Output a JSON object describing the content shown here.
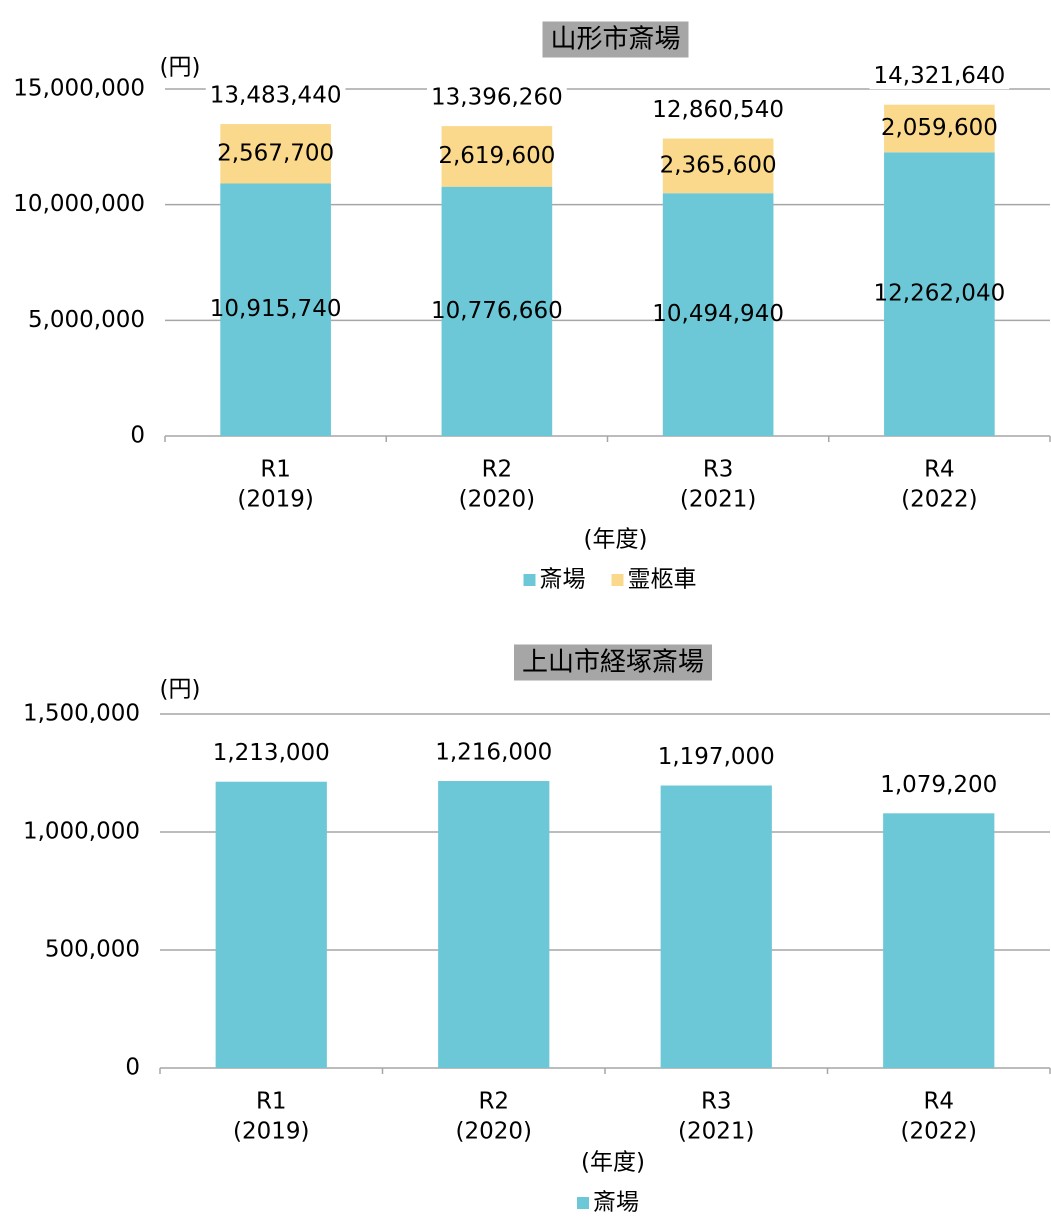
{
  "chart_data": [
    {
      "type": "stacked_bar",
      "title": "山形市斎場",
      "y_unit": "(円)",
      "x_label": "(年度)",
      "categories": [
        "R1",
        "R2",
        "R3",
        "R4"
      ],
      "category_years": [
        "(2019)",
        "(2020)",
        "(2021)",
        "(2022)"
      ],
      "series": [
        {
          "name": "斎場",
          "color": "#6cc8d6",
          "values": [
            10915740,
            10776660,
            10494940,
            12262040
          ],
          "value_labels": [
            "10,915,740",
            "10,776,660",
            "10,494,940",
            "12,262,040"
          ]
        },
        {
          "name": "霊柩車",
          "color": "#fad98c",
          "values": [
            2567700,
            2619600,
            2365600,
            2059600
          ],
          "value_labels": [
            "2,567,700",
            "2,619,600",
            "2,365,600",
            "2,059,600"
          ]
        }
      ],
      "totals": [
        13483440,
        13396260,
        12860540,
        14321640
      ],
      "total_labels": [
        "13,483,440",
        "13,396,260",
        "12,860,540",
        "14,321,640"
      ],
      "ylim": [
        0,
        15000000
      ],
      "yticks": [
        0,
        {
          "value": 5000000,
          "label": "5,000,000"
        },
        {
          "value": 10000000,
          "label": "10,000,000"
        },
        {
          "value": 15000000,
          "label": "15,000,000"
        }
      ],
      "grid": true,
      "legend": "bottom"
    },
    {
      "type": "bar",
      "title": "上山市経塚斎場",
      "y_unit": "(円)",
      "x_label": "(年度)",
      "categories": [
        "R1",
        "R2",
        "R3",
        "R4"
      ],
      "category_years": [
        "(2019)",
        "(2020)",
        "(2021)",
        "(2022)"
      ],
      "series": [
        {
          "name": "斎場",
          "color": "#6cc8d6",
          "values": [
            1213000,
            1216000,
            1197000,
            1079200
          ],
          "value_labels": [
            "1,213,000",
            "1,216,000",
            "1,197,000",
            "1,079,200"
          ]
        }
      ],
      "ylim": [
        0,
        1500000
      ],
      "yticks": [
        0,
        {
          "value": 500000,
          "label": "500,000"
        },
        {
          "value": 1000000,
          "label": "1,000,000"
        },
        {
          "value": 1500000,
          "label": "1,500,000"
        }
      ],
      "grid": true,
      "legend": "bottom"
    }
  ]
}
